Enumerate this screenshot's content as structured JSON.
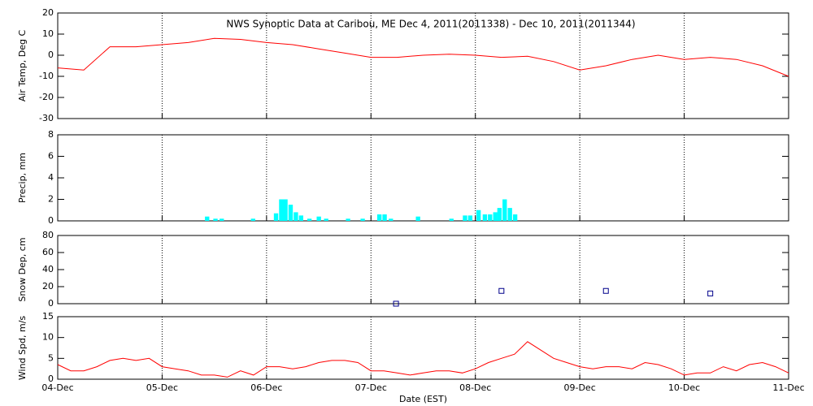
{
  "chart_data": [
    {
      "type": "line",
      "title": "NWS Synoptic Data at Caribou, ME   Dec  4, 2011(2011338) - Dec 10, 2011(2011344)",
      "ylabel": "Air Temp, Deg C",
      "color": "#ff0000",
      "x": [
        0,
        0.25,
        0.5,
        0.75,
        1,
        1.25,
        1.5,
        1.75,
        2,
        2.25,
        2.5,
        2.75,
        3,
        3.25,
        3.5,
        3.75,
        4,
        4.25,
        4.5,
        4.75,
        5,
        5.25,
        5.5,
        5.75,
        6,
        6.25,
        6.5,
        6.75,
        7
      ],
      "values": [
        -6,
        -7,
        4,
        4,
        5,
        6,
        8,
        7.5,
        6,
        5,
        3,
        1,
        -1,
        -1,
        0,
        0.5,
        0,
        -1,
        -0.5,
        -3,
        -7,
        -5,
        -2,
        0,
        -2,
        -1,
        -2,
        -5,
        -10
      ],
      "xlim": [
        0,
        7
      ],
      "xticks": [
        0,
        1,
        2,
        3,
        4,
        5,
        6,
        7
      ],
      "ylim": [
        -30,
        20
      ],
      "yticks": [
        -30,
        -20,
        -10,
        0,
        10,
        20
      ]
    },
    {
      "type": "bar",
      "ylabel": "Precip, mm",
      "color": "#00ffff",
      "x": [
        1.41,
        1.49,
        1.55,
        1.85,
        2.07,
        2.12,
        2.16,
        2.21,
        2.26,
        2.31,
        2.39,
        2.48,
        2.55,
        2.76,
        2.9,
        3.06,
        3.11,
        3.17,
        3.43,
        3.75,
        3.88,
        3.93,
        4.01,
        4.07,
        4.12,
        4.17,
        4.21,
        4.26,
        4.31,
        4.36
      ],
      "values": [
        0.4,
        0.2,
        0.2,
        0.2,
        0.7,
        2,
        2,
        1.5,
        0.8,
        0.5,
        0.2,
        0.4,
        0.2,
        0.2,
        0.2,
        0.6,
        0.6,
        0.2,
        0.4,
        0.2,
        0.5,
        0.5,
        1,
        0.6,
        0.6,
        0.8,
        1.2,
        2,
        1.2,
        0.6
      ],
      "xlim": [
        0,
        7
      ],
      "xticks": [
        0,
        1,
        2,
        3,
        4,
        5,
        6,
        7
      ],
      "ylim": [
        0,
        8
      ],
      "yticks": [
        0,
        2,
        4,
        6,
        8
      ]
    },
    {
      "type": "scatter",
      "ylabel": "Snow Dep, cm",
      "color": "#00008b",
      "x": [
        3.24,
        4.25,
        5.25,
        6.25
      ],
      "values": [
        0,
        15,
        15,
        12
      ],
      "xlim": [
        0,
        7
      ],
      "xticks": [
        0,
        1,
        2,
        3,
        4,
        5,
        6,
        7
      ],
      "ylim": [
        0,
        80
      ],
      "yticks": [
        0,
        20,
        40,
        60,
        80
      ]
    },
    {
      "type": "line",
      "ylabel": "Wind Spd, m/s",
      "xlabel": "Date (EST)",
      "color": "#ff0000",
      "x": [
        0,
        0.125,
        0.25,
        0.375,
        0.5,
        0.625,
        0.75,
        0.875,
        1,
        1.125,
        1.25,
        1.375,
        1.5,
        1.625,
        1.75,
        1.875,
        2,
        2.125,
        2.25,
        2.375,
        2.5,
        2.625,
        2.75,
        2.875,
        3,
        3.125,
        3.25,
        3.375,
        3.5,
        3.625,
        3.75,
        3.875,
        4,
        4.125,
        4.25,
        4.375,
        4.5,
        4.625,
        4.75,
        4.875,
        5,
        5.125,
        5.25,
        5.375,
        5.5,
        5.625,
        5.75,
        5.875,
        6,
        6.125,
        6.25,
        6.375,
        6.5,
        6.625,
        6.75,
        6.875,
        7
      ],
      "values": [
        3.5,
        2,
        2,
        3,
        4.5,
        5,
        4.5,
        5,
        3,
        2.5,
        2,
        1,
        1,
        0.5,
        2,
        1,
        3,
        3,
        2.5,
        3,
        4,
        4.5,
        4.5,
        4,
        2,
        2,
        1.5,
        1,
        1.5,
        2,
        2,
        1.5,
        2.5,
        4,
        5,
        6,
        9,
        7,
        5,
        4,
        3,
        2.5,
        3,
        3,
        2.5,
        4,
        3.5,
        2.5,
        1,
        1.5,
        1.5,
        3,
        2,
        3.5,
        4,
        3,
        1.5
      ],
      "xlim": [
        0,
        7
      ],
      "xticks": [
        {
          "value": 0,
          "label": "04-Dec"
        },
        {
          "value": 1,
          "label": "05-Dec"
        },
        {
          "value": 2,
          "label": "06-Dec"
        },
        {
          "value": 3,
          "label": "07-Dec"
        },
        {
          "value": 4,
          "label": "08-Dec"
        },
        {
          "value": 5,
          "label": "09-Dec"
        },
        {
          "value": 6,
          "label": "10-Dec"
        },
        {
          "value": 7,
          "label": "11-Dec"
        }
      ],
      "ylim": [
        0,
        15
      ],
      "yticks": [
        0,
        5,
        10,
        15
      ]
    }
  ]
}
